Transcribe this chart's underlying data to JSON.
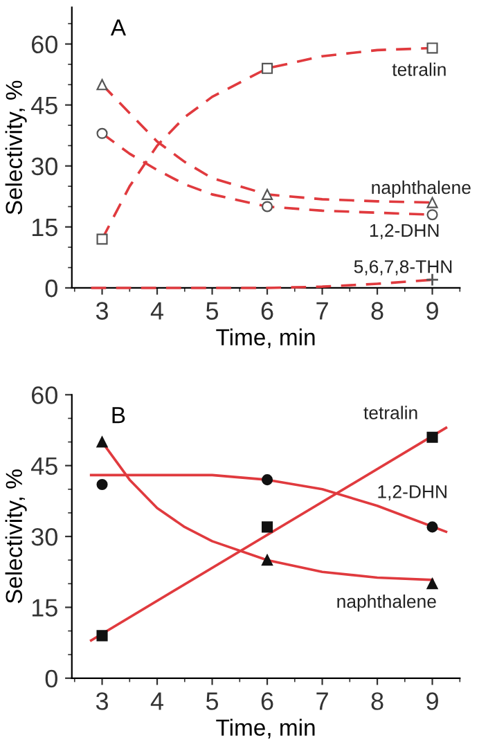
{
  "chart_data": [
    {
      "type": "line",
      "title": "A",
      "xlabel": "Time, min",
      "ylabel": "Selectivity, %",
      "xlim": [
        2.45,
        9.5
      ],
      "ylim": [
        0,
        69
      ],
      "xticks": [
        3,
        4,
        5,
        6,
        7,
        8,
        9
      ],
      "yticks": [
        0,
        15,
        30,
        45,
        60
      ],
      "grid": false,
      "legend": false,
      "line_style": "dashed",
      "series": [
        {
          "type": "scatter",
          "marker": "square",
          "color": "#555555",
          "x": [
            3,
            6,
            9
          ],
          "values": [
            12,
            54,
            59
          ]
        },
        {
          "type": "scatter",
          "marker": "triangle",
          "color": "#555555",
          "x": [
            3,
            6,
            9
          ],
          "values": [
            50,
            23,
            21
          ]
        },
        {
          "type": "scatter",
          "marker": "circle",
          "color": "#555555",
          "x": [
            3,
            6,
            9
          ],
          "values": [
            38,
            20,
            18
          ]
        },
        {
          "type": "scatter",
          "marker": "cross",
          "color": "#555555",
          "x": [
            9
          ],
          "values": [
            2
          ]
        },
        {
          "name": "tetralin",
          "color": "#e03a3e",
          "x": [
            3,
            3.5,
            4,
            4.5,
            5,
            6,
            7,
            8,
            9
          ],
          "values": [
            12,
            25,
            35,
            42,
            47,
            54,
            57,
            58.5,
            59
          ]
        },
        {
          "name": "naphthalene",
          "color": "#e03a3e",
          "x": [
            3,
            3.5,
            4,
            4.5,
            5,
            6,
            7,
            8,
            9
          ],
          "values": [
            50,
            43,
            36,
            31,
            27,
            23,
            21.8,
            21.3,
            21
          ]
        },
        {
          "name": "1,2-DHN",
          "color": "#e03a3e",
          "x": [
            3,
            3.5,
            4,
            4.5,
            5,
            6,
            7,
            8,
            9
          ],
          "values": [
            38,
            33,
            29,
            25.5,
            23,
            20,
            19,
            18.5,
            18
          ]
        },
        {
          "name": "5,6,7,8-THN",
          "color": "#e03a3e",
          "x": [
            2.8,
            6,
            7,
            8,
            9
          ],
          "values": [
            0,
            0,
            0.3,
            1,
            2
          ]
        }
      ]
    },
    {
      "type": "line",
      "title": "B",
      "xlabel": "Time, min",
      "ylabel": "Selectivity, %",
      "xlim": [
        2.45,
        9.5
      ],
      "ylim": [
        0,
        60
      ],
      "xticks": [
        3,
        4,
        5,
        6,
        7,
        8,
        9
      ],
      "yticks": [
        0,
        15,
        30,
        45,
        60
      ],
      "grid": false,
      "legend": false,
      "line_style": "solid",
      "series": [
        {
          "type": "scatter",
          "marker": "square",
          "color": "#111111",
          "x": [
            3,
            6,
            9
          ],
          "values": [
            9,
            32,
            51
          ]
        },
        {
          "type": "scatter",
          "marker": "circle",
          "color": "#111111",
          "x": [
            3,
            6,
            9
          ],
          "values": [
            41,
            42,
            32
          ]
        },
        {
          "type": "scatter",
          "marker": "triangle",
          "color": "#111111",
          "x": [
            3,
            6,
            9
          ],
          "values": [
            50,
            25,
            20
          ]
        },
        {
          "name": "tetralin",
          "color": "#e03a3e",
          "x": [
            2.8,
            9.25
          ],
          "values": [
            8,
            53
          ]
        },
        {
          "name": "1,2-DHN",
          "color": "#e03a3e",
          "x": [
            2.8,
            5,
            6,
            7,
            8,
            9.25
          ],
          "values": [
            43,
            43,
            42,
            40,
            36.5,
            31
          ]
        },
        {
          "name": "naphthalene",
          "color": "#e03a3e",
          "x": [
            3,
            3.5,
            4,
            4.5,
            5,
            6,
            7,
            8,
            9
          ],
          "values": [
            50,
            42,
            36,
            32,
            29,
            25,
            22.5,
            21.3,
            20.8
          ]
        }
      ]
    }
  ]
}
